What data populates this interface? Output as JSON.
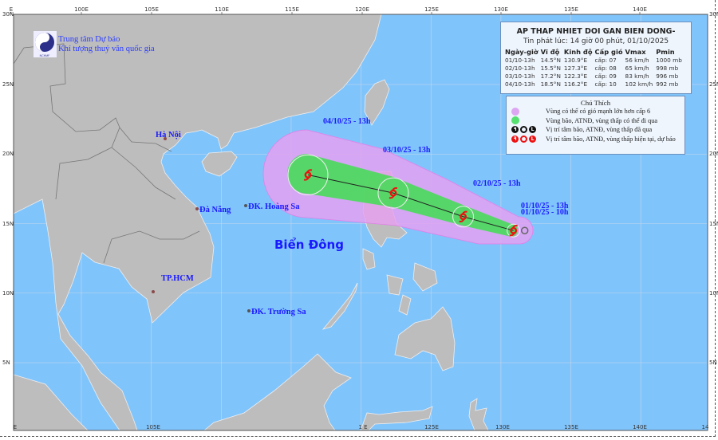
{
  "header": {
    "org_line1": "Trung tâm Dự báo",
    "org_line2": "Khí tượng thuỷ văn quốc gia",
    "logo_text": "NCHMF"
  },
  "info": {
    "title": "AP THAP NHIET DOI GAN BIEN DONG-",
    "issued": "Tin phát lúc: 14 giờ 00 phút, 01/10/2025",
    "columns": [
      "Ngày-giờ",
      "Vĩ độ",
      "Kinh độ",
      "Cấp gió",
      "Vmax",
      "Pmin"
    ],
    "rows": [
      [
        "01/10-13h",
        "14.5°N",
        "130.9°E",
        "cấp: 07",
        "56 km/h",
        "1000 mb"
      ],
      [
        "02/10-13h",
        "15.5°N",
        "127.3°E",
        "cấp: 08",
        "65 km/h",
        "998 mb"
      ],
      [
        "03/10-13h",
        "17.2°N",
        "122.3°E",
        "cấp: 09",
        "83 km/h",
        "996 mb"
      ],
      [
        "04/10-13h",
        "18.5°N",
        "116.2°E",
        "cấp: 10",
        "102 km/h",
        "992 mb"
      ]
    ]
  },
  "legend": {
    "title": "Chú Thích",
    "items": [
      {
        "text": "Vùng có thể có gió mạnh lớn hơn cấp 6",
        "color": "#dda6f3"
      },
      {
        "text": "Vùng bão, ATNĐ, vùng thấp có thể đi qua",
        "color": "#55e070"
      },
      {
        "text": "Vị trí tâm bão, ATNĐ, vùng thấp đã qua",
        "color": "#111111"
      },
      {
        "text": "Vị trí tâm bão, ATNĐ, vùng thấp hiện tại, dự báo",
        "color": "#ee1111"
      }
    ]
  },
  "map": {
    "top_lon_labels": [
      "E",
      "100E",
      "105E",
      "110E",
      "115E",
      "120E",
      "125E",
      "130E",
      "135E",
      "140E"
    ],
    "bottom_lon_labels": [
      "E",
      "105E",
      "1 E",
      "125E",
      "130E",
      "135E",
      "140E",
      "14"
    ],
    "lat_labels": [
      "30N",
      "25N",
      "20N",
      "15N",
      "10N",
      "5N"
    ],
    "sea_label": "Biển Đông",
    "places": [
      "Hà Nội",
      "Đà Nẵng",
      "ĐK. Hoàng Sa",
      "TP.HCM",
      "ĐK. Trường Sa"
    ],
    "colors": {
      "sea": "#80c4fc",
      "land": "#bdbdbd",
      "wind_zone": "#dda6f3",
      "storm_zone": "#55e070",
      "center": "#ee1111"
    }
  },
  "track": {
    "past": {
      "label": "01/10/25 - 10h",
      "lat": 14.5,
      "lon": 131.3
    },
    "points": [
      {
        "label": "01/10/25 - 13h",
        "lat": 14.5,
        "lon": 130.9
      },
      {
        "label": "02/10/25 - 13h",
        "lat": 15.5,
        "lon": 127.3
      },
      {
        "label": "03/10/25 - 13h",
        "lat": 17.2,
        "lon": 122.3
      },
      {
        "label": "04/10/25 - 13h",
        "lat": 18.5,
        "lon": 116.2
      }
    ]
  }
}
